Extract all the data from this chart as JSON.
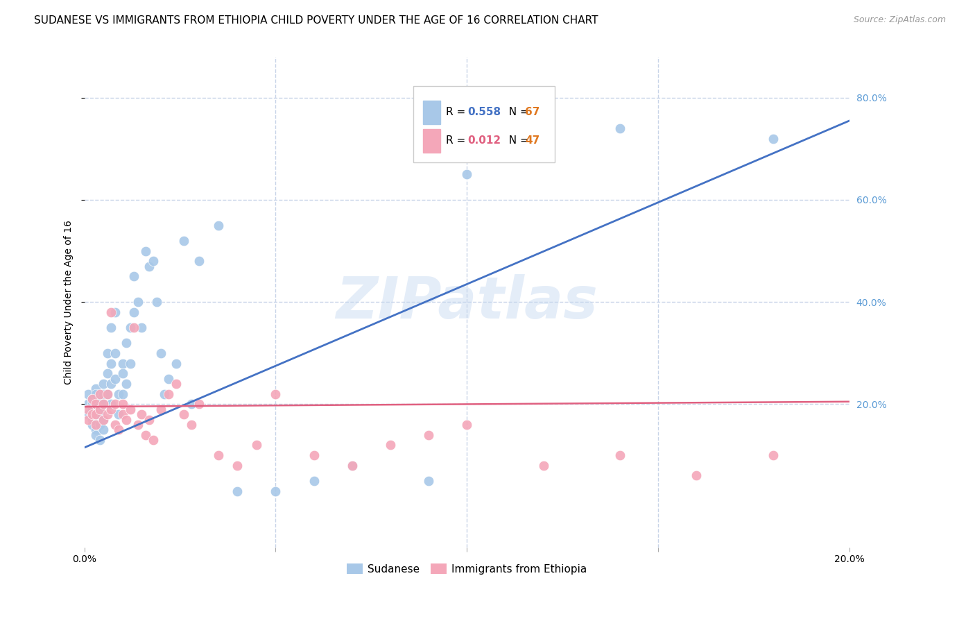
{
  "title": "SUDANESE VS IMMIGRANTS FROM ETHIOPIA CHILD POVERTY UNDER THE AGE OF 16 CORRELATION CHART",
  "source": "Source: ZipAtlas.com",
  "ylabel": "Child Poverty Under the Age of 16",
  "xlim": [
    0.0,
    0.2
  ],
  "ylim": [
    -0.08,
    0.88
  ],
  "right_ytick_color": "#5b9bd5",
  "sudanese_color": "#a8c8e8",
  "ethiopia_color": "#f4a7b9",
  "line_blue": "#4472c4",
  "line_pink": "#e06080",
  "watermark": "ZIPatlas",
  "background_color": "#ffffff",
  "grid_color": "#c8d4e8",
  "title_fontsize": 11,
  "axis_label_fontsize": 10,
  "tick_fontsize": 10,
  "sudanese_x": [
    0.001,
    0.001,
    0.001,
    0.002,
    0.002,
    0.002,
    0.002,
    0.002,
    0.003,
    0.003,
    0.003,
    0.003,
    0.003,
    0.003,
    0.004,
    0.004,
    0.004,
    0.004,
    0.004,
    0.005,
    0.005,
    0.005,
    0.005,
    0.005,
    0.006,
    0.006,
    0.006,
    0.007,
    0.007,
    0.007,
    0.007,
    0.008,
    0.008,
    0.008,
    0.009,
    0.009,
    0.01,
    0.01,
    0.01,
    0.011,
    0.011,
    0.012,
    0.012,
    0.013,
    0.013,
    0.014,
    0.015,
    0.016,
    0.017,
    0.018,
    0.019,
    0.02,
    0.021,
    0.022,
    0.024,
    0.026,
    0.028,
    0.03,
    0.035,
    0.04,
    0.05,
    0.06,
    0.07,
    0.09,
    0.1,
    0.14,
    0.18
  ],
  "sudanese_y": [
    0.2,
    0.22,
    0.18,
    0.19,
    0.21,
    0.17,
    0.2,
    0.16,
    0.23,
    0.18,
    0.2,
    0.15,
    0.22,
    0.14,
    0.19,
    0.21,
    0.16,
    0.18,
    0.13,
    0.22,
    0.24,
    0.2,
    0.17,
    0.15,
    0.3,
    0.26,
    0.22,
    0.35,
    0.28,
    0.24,
    0.2,
    0.38,
    0.3,
    0.25,
    0.22,
    0.18,
    0.28,
    0.26,
    0.22,
    0.32,
    0.24,
    0.35,
    0.28,
    0.45,
    0.38,
    0.4,
    0.35,
    0.5,
    0.47,
    0.48,
    0.4,
    0.3,
    0.22,
    0.25,
    0.28,
    0.52,
    0.2,
    0.48,
    0.55,
    0.03,
    0.03,
    0.05,
    0.08,
    0.05,
    0.65,
    0.74,
    0.72
  ],
  "ethiopia_x": [
    0.001,
    0.001,
    0.002,
    0.002,
    0.003,
    0.003,
    0.003,
    0.004,
    0.004,
    0.005,
    0.005,
    0.006,
    0.006,
    0.007,
    0.007,
    0.008,
    0.008,
    0.009,
    0.01,
    0.01,
    0.011,
    0.012,
    0.013,
    0.014,
    0.015,
    0.016,
    0.017,
    0.018,
    0.02,
    0.022,
    0.024,
    0.026,
    0.028,
    0.03,
    0.035,
    0.04,
    0.045,
    0.05,
    0.06,
    0.07,
    0.08,
    0.09,
    0.1,
    0.12,
    0.14,
    0.16,
    0.18
  ],
  "ethiopia_y": [
    0.19,
    0.17,
    0.21,
    0.18,
    0.2,
    0.16,
    0.18,
    0.22,
    0.19,
    0.2,
    0.17,
    0.22,
    0.18,
    0.38,
    0.19,
    0.16,
    0.2,
    0.15,
    0.18,
    0.2,
    0.17,
    0.19,
    0.35,
    0.16,
    0.18,
    0.14,
    0.17,
    0.13,
    0.19,
    0.22,
    0.24,
    0.18,
    0.16,
    0.2,
    0.1,
    0.08,
    0.12,
    0.22,
    0.1,
    0.08,
    0.12,
    0.14,
    0.16,
    0.08,
    0.1,
    0.06,
    0.1
  ],
  "blue_line_x0": 0.0,
  "blue_line_y0": 0.115,
  "blue_line_x1": 0.2,
  "blue_line_y1": 0.755,
  "pink_line_x0": 0.0,
  "pink_line_y0": 0.195,
  "pink_line_x1": 0.2,
  "pink_line_y1": 0.205
}
